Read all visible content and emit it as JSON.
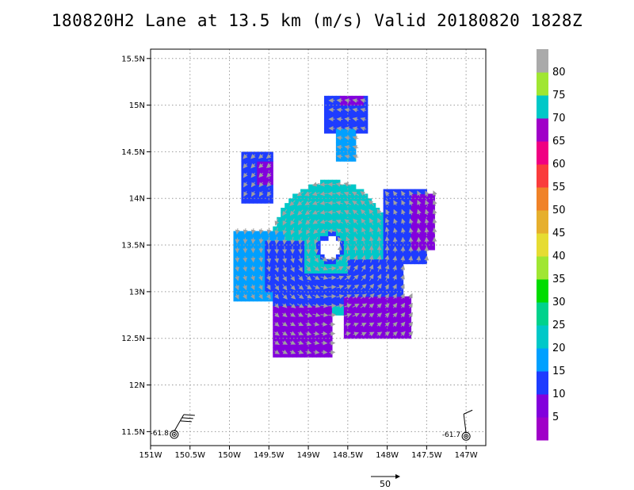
{
  "title": "180820H2 Lane at 13.5 km (m/s) Valid 20180820  1828Z",
  "chart_data": {
    "type": "heatmap",
    "xlim": [
      -151,
      -146.75
    ],
    "ylim": [
      11.35,
      15.6
    ],
    "x_ticks": [
      {
        "v": -151,
        "label": "151W"
      },
      {
        "v": -150.5,
        "label": "150.5W"
      },
      {
        "v": -150,
        "label": "150W"
      },
      {
        "v": -149.5,
        "label": "149.5W"
      },
      {
        "v": -149,
        "label": "149W"
      },
      {
        "v": -148.5,
        "label": "148.5W"
      },
      {
        "v": -148,
        "label": "148W"
      },
      {
        "v": -147.5,
        "label": "147.5W"
      },
      {
        "v": -147,
        "label": "147W"
      }
    ],
    "y_ticks": [
      {
        "v": 11.5,
        "label": "11.5N"
      },
      {
        "v": 12,
        "label": "12N"
      },
      {
        "v": 12.5,
        "label": "12.5N"
      },
      {
        "v": 13,
        "label": "13N"
      },
      {
        "v": 13.5,
        "label": "13.5N"
      },
      {
        "v": 14,
        "label": "14N"
      },
      {
        "v": 14.5,
        "label": "14.5N"
      },
      {
        "v": 15,
        "label": "15N"
      },
      {
        "v": 15.5,
        "label": "15.5N"
      }
    ],
    "grid": true,
    "colorbar": {
      "labels": [
        "5",
        "10",
        "15",
        "20",
        "25",
        "30",
        "35",
        "40",
        "45",
        "50",
        "55",
        "60",
        "65",
        "70",
        "75",
        "80"
      ],
      "colors": [
        "#a000c8",
        "#8200dc",
        "#1e3cff",
        "#00a0ff",
        "#00c8c8",
        "#00d28c",
        "#00dc00",
        "#a0e632",
        "#e6dc32",
        "#e6af2d",
        "#f08228",
        "#fa3c3c",
        "#f00082",
        "#a000c8",
        "#00c8c8",
        "#a0e632",
        "#aaaaaa"
      ]
    },
    "wind_field": {
      "center": [
        -148.72,
        13.47
      ],
      "regions": [
        {
          "type": "ring",
          "cx": -148.72,
          "cy": 13.47,
          "rin": 0.17,
          "rout": 0.75,
          "v": 20
        },
        {
          "type": "ring",
          "cx": -148.72,
          "cy": 13.47,
          "rin": 0.12,
          "rout": 0.17,
          "v": 12
        },
        {
          "type": "ring",
          "cx": -148.72,
          "cy": 13.47,
          "rin": 0.22,
          "rout": 0.5,
          "v": 22
        },
        {
          "type": "rect",
          "x": [
            -149.95,
            -149.3
          ],
          "y": [
            12.9,
            13.65
          ],
          "v": 17
        },
        {
          "type": "rect",
          "x": [
            -149.55,
            -149.05
          ],
          "y": [
            13.0,
            13.55
          ],
          "v": 10
        },
        {
          "type": "rect",
          "x": [
            -149.45,
            -148.7
          ],
          "y": [
            12.3,
            12.95
          ],
          "v": 7
        },
        {
          "type": "rect",
          "x": [
            -149.45,
            -148.3
          ],
          "y": [
            12.85,
            13.2
          ],
          "v": 12
        },
        {
          "type": "rect",
          "x": [
            -148.5,
            -147.8
          ],
          "y": [
            12.9,
            13.35
          ],
          "v": 12
        },
        {
          "type": "rect",
          "x": [
            -148.55,
            -147.7
          ],
          "y": [
            12.5,
            12.95
          ],
          "v": 7
        },
        {
          "type": "rect",
          "x": [
            -148.05,
            -147.5
          ],
          "y": [
            13.3,
            14.1
          ],
          "v": 12
        },
        {
          "type": "rect",
          "x": [
            -147.7,
            -147.4
          ],
          "y": [
            13.45,
            14.05
          ],
          "v": 7
        },
        {
          "type": "rect",
          "x": [
            -149.85,
            -149.45
          ],
          "y": [
            13.95,
            14.5
          ],
          "v": 12
        },
        {
          "type": "rect",
          "x": [
            -149.65,
            -149.45
          ],
          "y": [
            14.15,
            14.4
          ],
          "v": 7
        },
        {
          "type": "rect",
          "x": [
            -148.8,
            -148.25
          ],
          "y": [
            14.7,
            15.1
          ],
          "v": 12
        },
        {
          "type": "rect",
          "x": [
            -148.6,
            -148.3
          ],
          "y": [
            15.0,
            15.1
          ],
          "v": 7
        },
        {
          "type": "rect",
          "x": [
            -148.65,
            -148.4
          ],
          "y": [
            14.4,
            14.75
          ],
          "v": 17
        }
      ]
    },
    "station_plots": [
      {
        "lon": -150.7,
        "lat": 11.47,
        "label": "-61.8"
      },
      {
        "lon": -147.0,
        "lat": 11.45,
        "label": "-61.7"
      }
    ],
    "reference_vector": {
      "label": "50"
    }
  }
}
